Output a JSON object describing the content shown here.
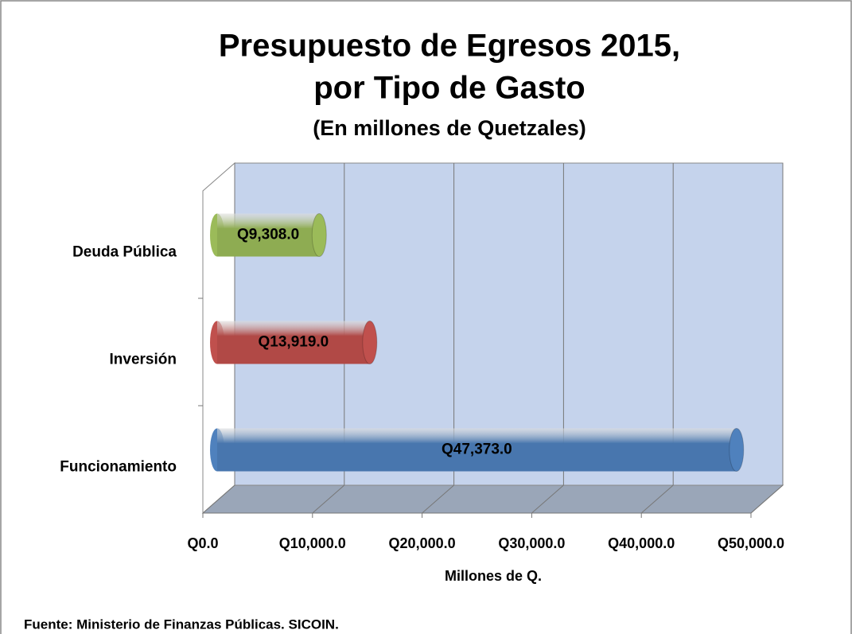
{
  "chart_data": {
    "type": "bar3d_horizontal",
    "title": [
      "Presupuesto de Egresos  2015,",
      "por Tipo de Gasto"
    ],
    "subtitle": "(En millones de Quetzales)",
    "categories": [
      "Deuda Pública",
      "Inversión",
      "Funcionamiento"
    ],
    "values": [
      9308,
      13919,
      47373
    ],
    "value_labels": [
      "Q9,308.0",
      "Q13,919.0",
      "Q47,373.0"
    ],
    "colors": [
      "#9bbb59",
      "#c0504d",
      "#4f81bd"
    ],
    "xlim": [
      0,
      50000
    ],
    "xticks": [
      {
        "value": 0,
        "label": "Q0.0"
      },
      {
        "value": 10000,
        "label": "Q10,000.0"
      },
      {
        "value": 20000,
        "label": "Q20,000.0"
      },
      {
        "value": 30000,
        "label": "Q30,000.0"
      },
      {
        "value": 40000,
        "label": "Q40,000.0"
      },
      {
        "value": 50000,
        "label": "Q50,000.0"
      }
    ],
    "xlabel": "Millones de Q.",
    "grid": true,
    "source": "Fuente: Ministerio de Finanzas  Públicas.  SICOIN."
  }
}
